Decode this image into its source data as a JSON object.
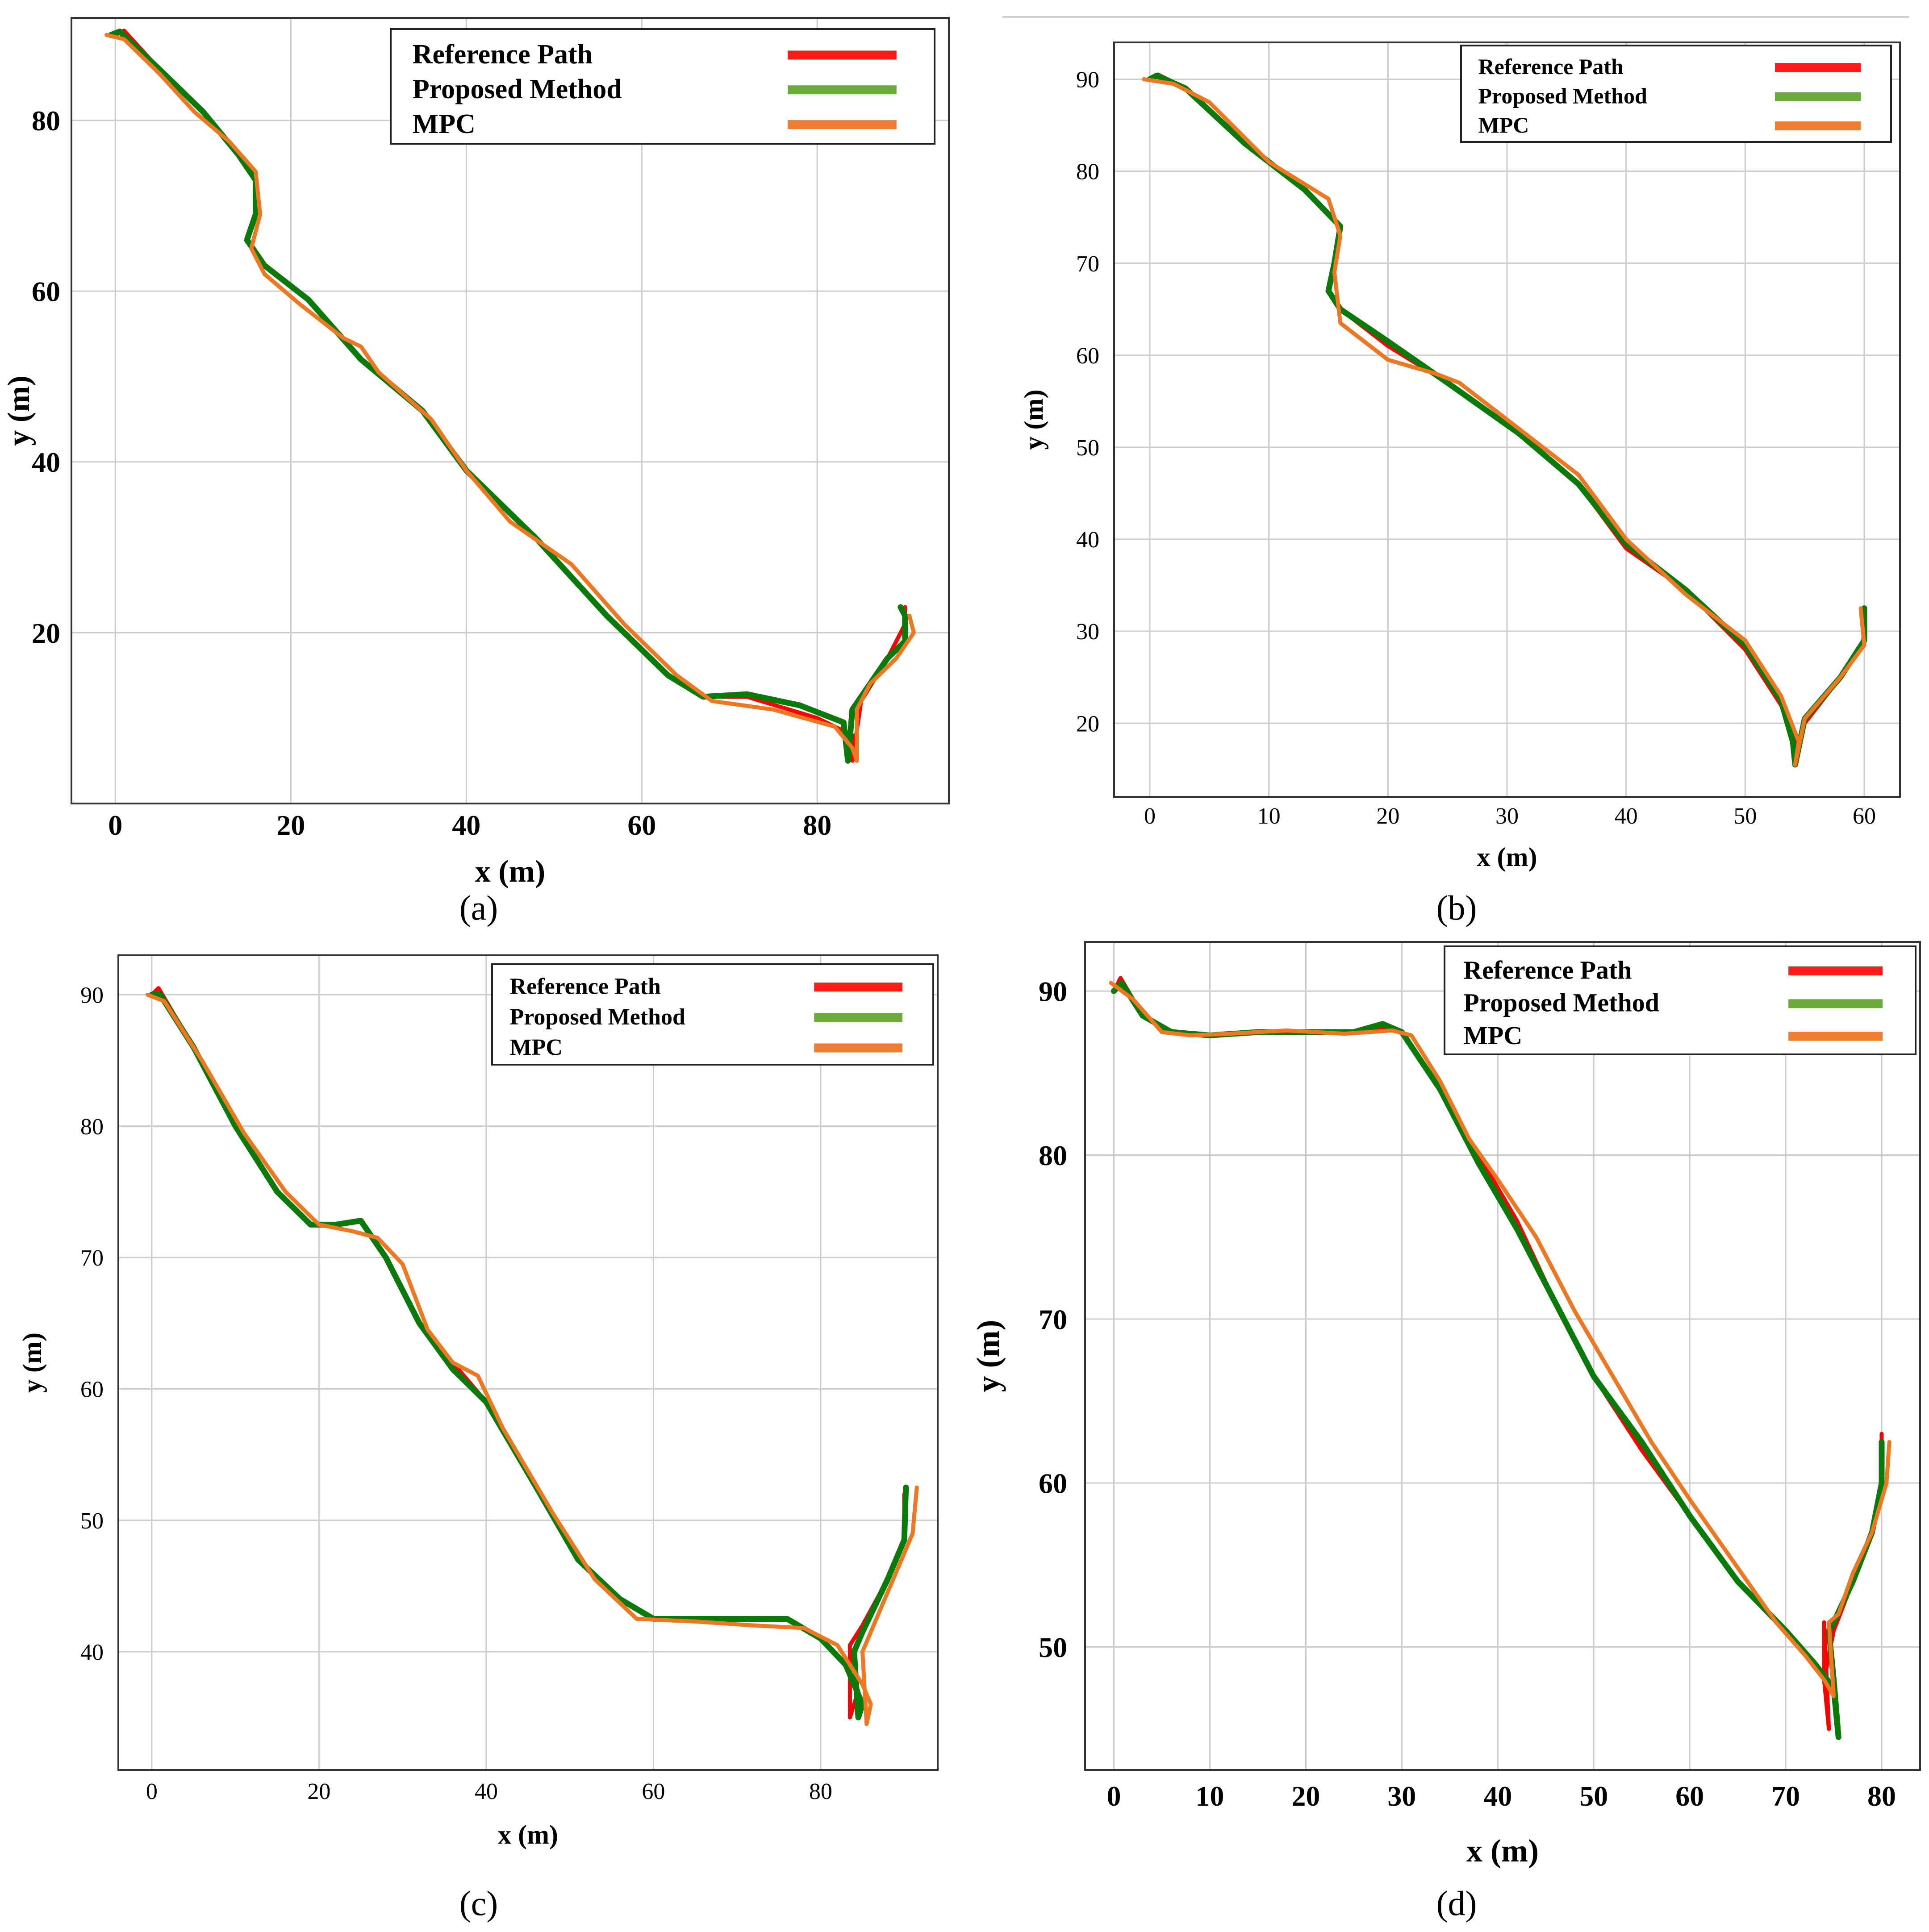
{
  "legend": {
    "entries": [
      {
        "label": "Reference Path",
        "color": "#ff1a1a"
      },
      {
        "label": "Proposed Method",
        "color": "#6aab3c"
      },
      {
        "label": "MPC",
        "color": "#ef7d32"
      }
    ]
  },
  "line_colors": {
    "reference": "#ff0000",
    "proposed": "#0a7a0a",
    "mpc": "#ee7722"
  },
  "chart_data": [
    {
      "type": "line",
      "panel": "(a)",
      "xlabel": "x (m)",
      "ylabel": "y (m)",
      "xlim": [
        -5,
        95
      ],
      "ylim": [
        0,
        92
      ],
      "xticks": [
        0,
        20,
        40,
        60,
        80
      ],
      "yticks": [
        20,
        40,
        60,
        80
      ],
      "grid": true,
      "legend_position": "top-right",
      "series": [
        {
          "name": "Reference Path",
          "x": [
            0,
            1,
            5,
            10,
            14,
            16,
            16,
            15,
            17,
            22,
            28,
            35,
            40,
            48,
            56,
            63,
            67,
            72,
            80,
            84,
            84,
            85,
            88,
            90,
            90
          ],
          "y": [
            90,
            90.5,
            86,
            81,
            76,
            73,
            69,
            66,
            63,
            59,
            52,
            46,
            39,
            31,
            22,
            15,
            12.5,
            12.5,
            10,
            8,
            5,
            12,
            17,
            21,
            23
          ]
        },
        {
          "name": "Proposed Method",
          "x": [
            -0.5,
            0.5,
            5,
            10,
            14,
            16,
            16,
            15,
            17,
            22,
            28,
            35,
            40,
            48,
            56,
            63,
            67,
            72,
            78,
            83,
            83.5,
            84,
            86,
            88,
            90,
            90,
            89.5
          ],
          "y": [
            90,
            90.4,
            86,
            81,
            76,
            73,
            69,
            66,
            63,
            59,
            52,
            46,
            39,
            31,
            22,
            15,
            12.5,
            12.8,
            11.5,
            9.5,
            5,
            11,
            14,
            17,
            19,
            22,
            23
          ]
        },
        {
          "name": "MPC",
          "x": [
            -1,
            1,
            5,
            9,
            13,
            16,
            16.5,
            15.5,
            17,
            21,
            26,
            28,
            30,
            36,
            40,
            45,
            52,
            58,
            64,
            68,
            75,
            82,
            84,
            84.5,
            84.5,
            86,
            89,
            91,
            90.5
          ],
          "y": [
            90,
            89.5,
            85.5,
            81,
            77.5,
            74,
            69,
            65,
            62,
            58.5,
            54.5,
            53.5,
            50.5,
            45,
            39,
            33,
            28,
            21,
            15,
            12,
            11,
            9,
            6.5,
            5,
            11,
            14,
            17,
            20,
            22
          ]
        }
      ]
    },
    {
      "type": "line",
      "panel": "(b)",
      "xlabel": "x (m)",
      "ylabel": "y (m)",
      "xlim": [
        -3,
        63
      ],
      "ylim": [
        12,
        94
      ],
      "xticks": [
        0,
        10,
        20,
        30,
        40,
        50,
        60
      ],
      "yticks": [
        20,
        30,
        40,
        50,
        60,
        70,
        80,
        90
      ],
      "grid": true,
      "legend_position": "top-right",
      "series": [
        {
          "name": "Reference Path",
          "x": [
            0,
            0.7,
            3,
            8,
            13,
            16,
            15.5,
            15,
            16,
            20,
            25,
            31,
            36,
            40,
            45,
            50,
            53,
            54.2,
            54.2,
            55,
            58,
            60,
            60
          ],
          "y": [
            90,
            90.5,
            89,
            83,
            78,
            74,
            70,
            67,
            65,
            61,
            57,
            51.5,
            46,
            39,
            34.5,
            28,
            22,
            18,
            15.5,
            20,
            25,
            29,
            32
          ]
        },
        {
          "name": "Proposed Method",
          "x": [
            0,
            0.6,
            3,
            8,
            13,
            16,
            15.5,
            15,
            16,
            20,
            25,
            31,
            36,
            40,
            45,
            50,
            53,
            54,
            54.2,
            55,
            58,
            60,
            60
          ],
          "y": [
            90,
            90.4,
            89,
            83,
            78,
            74,
            70,
            67,
            65,
            61.5,
            57,
            51.5,
            46,
            39.5,
            34.5,
            28.5,
            22.5,
            18,
            15.5,
            20.5,
            25,
            29,
            32.5
          ]
        },
        {
          "name": "MPC",
          "x": [
            -0.5,
            2,
            5,
            10,
            15,
            16,
            15.5,
            16,
            20,
            24,
            26,
            31,
            36,
            40,
            45,
            50,
            53,
            54.5,
            54.2,
            55,
            58,
            60,
            59.7
          ],
          "y": [
            90,
            89.5,
            87.5,
            81,
            77,
            73,
            69,
            63.5,
            59.5,
            58,
            57,
            52,
            47,
            40,
            34,
            29,
            23,
            18,
            15.5,
            20.5,
            25,
            28.5,
            32.5
          ]
        }
      ]
    },
    {
      "type": "line",
      "panel": "(c)",
      "xlabel": "x (m)",
      "ylabel": "y (m)",
      "xlim": [
        -4,
        94
      ],
      "ylim": [
        31,
        93
      ],
      "xticks": [
        0,
        20,
        40,
        60,
        80
      ],
      "yticks": [
        40,
        50,
        60,
        70,
        80,
        90
      ],
      "grid": true,
      "legend_position": "top-right",
      "series": [
        {
          "name": "Reference Path",
          "x": [
            0,
            0.8,
            5,
            10,
            15,
            19,
            22,
            25,
            28,
            32,
            36,
            40,
            46,
            51,
            56,
            60,
            66,
            72,
            76,
            80,
            83,
            84.5,
            83.5,
            83.5,
            85,
            88,
            90,
            90
          ],
          "y": [
            90,
            90.5,
            86,
            80,
            75,
            72.5,
            72.5,
            72.8,
            70,
            65,
            62,
            59,
            52.5,
            47,
            44,
            42.5,
            42.5,
            42.5,
            42.5,
            41,
            39,
            37,
            35,
            40.5,
            42,
            45.5,
            48.5,
            52
          ]
        },
        {
          "name": "Proposed Method",
          "x": [
            0,
            1,
            5,
            10,
            15,
            19,
            22,
            25,
            28,
            32,
            36,
            40,
            46,
            51,
            56,
            60,
            66,
            72,
            76,
            80,
            83,
            85,
            84.5,
            84,
            85,
            88,
            90,
            90.2
          ],
          "y": [
            90,
            90,
            86,
            80,
            75,
            72.5,
            72.5,
            72.8,
            70,
            65,
            61.5,
            59,
            52.5,
            47,
            44,
            42.5,
            42.5,
            42.5,
            42.5,
            41,
            39,
            36,
            35,
            40,
            41.5,
            45.5,
            48.5,
            52.5
          ]
        },
        {
          "name": "MPC",
          "x": [
            -0.5,
            1.5,
            6,
            11,
            16,
            20,
            24,
            27,
            30,
            33,
            36,
            39,
            42,
            48,
            53,
            58,
            65,
            72,
            78,
            82,
            85,
            86,
            85.5,
            85,
            87,
            89,
            91,
            91.5
          ],
          "y": [
            90,
            89.5,
            85,
            79.5,
            75,
            72.5,
            72,
            71.5,
            69.5,
            64.5,
            62,
            61,
            57,
            50.5,
            45.5,
            42.5,
            42.3,
            42,
            41.8,
            40.5,
            37.5,
            36,
            34.5,
            40,
            43,
            46,
            49,
            52.5
          ]
        }
      ]
    },
    {
      "type": "line",
      "panel": "(d)",
      "xlabel": "x (m)",
      "ylabel": "y (m)",
      "xlim": [
        -3,
        84
      ],
      "ylim": [
        42.5,
        93
      ],
      "xticks": [
        0,
        10,
        20,
        30,
        40,
        50,
        60,
        70,
        80
      ],
      "yticks": [
        50,
        60,
        70,
        80,
        90
      ],
      "grid": true,
      "legend_position": "top-right",
      "series": [
        {
          "name": "Reference Path",
          "x": [
            0,
            0.7,
            3,
            6,
            10,
            15,
            20,
            25,
            28,
            30,
            34,
            38,
            42,
            46,
            50,
            55,
            60,
            65,
            70,
            73,
            74,
            74.5,
            74,
            74,
            75,
            77,
            79,
            80,
            80
          ],
          "y": [
            90,
            90.8,
            88.5,
            87.5,
            87.3,
            87.5,
            87.5,
            87.5,
            87.8,
            87.5,
            84,
            80,
            76,
            71,
            66.5,
            62,
            58,
            54,
            51,
            49,
            48,
            45,
            51.5,
            48,
            51,
            54,
            57,
            60,
            63
          ]
        },
        {
          "name": "Proposed Method",
          "x": [
            0,
            0.8,
            3,
            6,
            10,
            15,
            20,
            25,
            28,
            30,
            34,
            38,
            42,
            46,
            50,
            55,
            60,
            65,
            70,
            73,
            75,
            75.5,
            75,
            74.5,
            75,
            77,
            79,
            80,
            80
          ],
          "y": [
            90,
            90.5,
            88.5,
            87.5,
            87.3,
            87.5,
            87.5,
            87.5,
            88,
            87.5,
            84,
            79.5,
            75.5,
            71,
            66.5,
            62.5,
            58,
            54,
            51,
            49,
            47.5,
            44.5,
            48,
            51,
            51.5,
            54,
            57,
            60,
            62.5
          ]
        },
        {
          "name": "MPC",
          "x": [
            -0.3,
            2,
            5,
            8,
            12,
            18,
            24,
            29,
            31,
            34,
            37,
            40,
            44,
            48,
            52,
            56,
            60,
            63,
            66,
            69,
            72,
            74,
            75,
            74.5,
            75.5,
            77,
            79,
            80.5,
            80.8
          ],
          "y": [
            90.5,
            89.5,
            87.5,
            87.3,
            87.4,
            87.6,
            87.4,
            87.6,
            87.3,
            84.5,
            81,
            78.5,
            75,
            70.5,
            66.5,
            62.5,
            59,
            56.5,
            54,
            51.5,
            49.5,
            48,
            47,
            51.5,
            52,
            54.5,
            57,
            60,
            62.5
          ]
        }
      ]
    }
  ]
}
